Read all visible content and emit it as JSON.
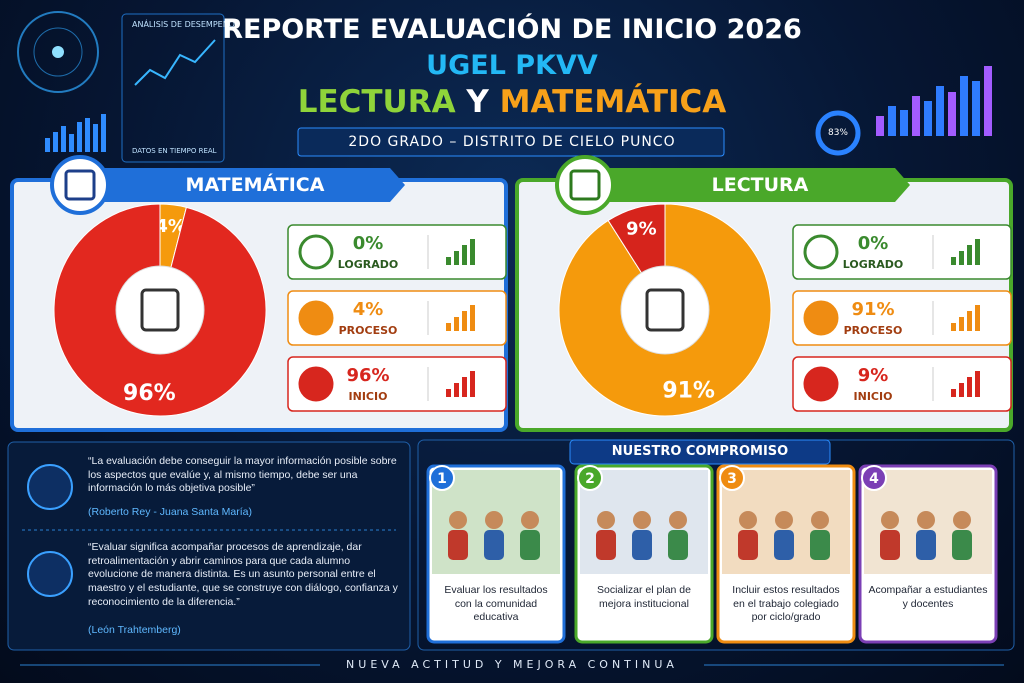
{
  "header": {
    "badge_top": "ANÁLISIS DE DESEMPEÑO",
    "badge_bottom": "DATOS EN TIEMPO REAL",
    "gauge": "83%",
    "title": "REPORTE EVALUACIÓN DE INICIO 2026",
    "subtitle": "UGEL PKVV",
    "line3": [
      "LECTURA",
      "Y",
      "MATEMÁTICA"
    ],
    "grade": "2DO GRADO – DISTRITO DE CIELO PUNCO"
  },
  "chart_data": [
    {
      "type": "pie",
      "title": "MATEMÁTICA",
      "values": [
        4,
        96
      ],
      "value_labels": [
        "4%",
        "96%"
      ],
      "colors": [
        "#f59a0c",
        "#e2281f"
      ],
      "cards": [
        {
          "value": "0%",
          "label": "LOGRADO"
        },
        {
          "value": "4%",
          "label": "PROCESO"
        },
        {
          "value": "96%",
          "label": "INICIO"
        }
      ]
    },
    {
      "type": "pie",
      "title": "LECTURA",
      "values": [
        91,
        9
      ],
      "value_labels": [
        "91%",
        "9%"
      ],
      "colors": [
        "#f59a0c",
        "#d6241c"
      ],
      "cards": [
        {
          "value": "0%",
          "label": "LOGRADO"
        },
        {
          "value": "91%",
          "label": "PROCESO"
        },
        {
          "value": "9%",
          "label": "INICIO"
        }
      ]
    }
  ],
  "quotes": [
    {
      "text": "“La evaluación debe conseguir la mayor información posible sobre los aspectos que evalúe y, al mismo tiempo, debe ser una información lo más objetiva posible”",
      "author": "(Roberto Rey - Juana Santa María)"
    },
    {
      "text": "“Evaluar significa acompañar procesos de aprendizaje, dar retroalimentación y abrir caminos para que cada alumno evolucione de manera distinta. Es un asunto personal entre el maestro y el estudiante, que se construye con diálogo, confianza y reconocimiento de la diferencia.”",
      "author": "(León Trahtemberg)"
    }
  ],
  "commitment": {
    "title": "NUESTRO COMPROMISO",
    "items": [
      {
        "number": "1",
        "text": "Evaluar los resultados con la comunidad educativa"
      },
      {
        "number": "2",
        "text": "Socializar el plan de mejora institucional"
      },
      {
        "number": "3",
        "text": "Incluir estos resultados en el trabajo colegiado por ciclo/grado"
      },
      {
        "number": "4",
        "text": "Acompañar a estudiantes y docentes"
      }
    ]
  },
  "footer": "NUEVA ACTITUD Y MEJORA CONTINUA"
}
